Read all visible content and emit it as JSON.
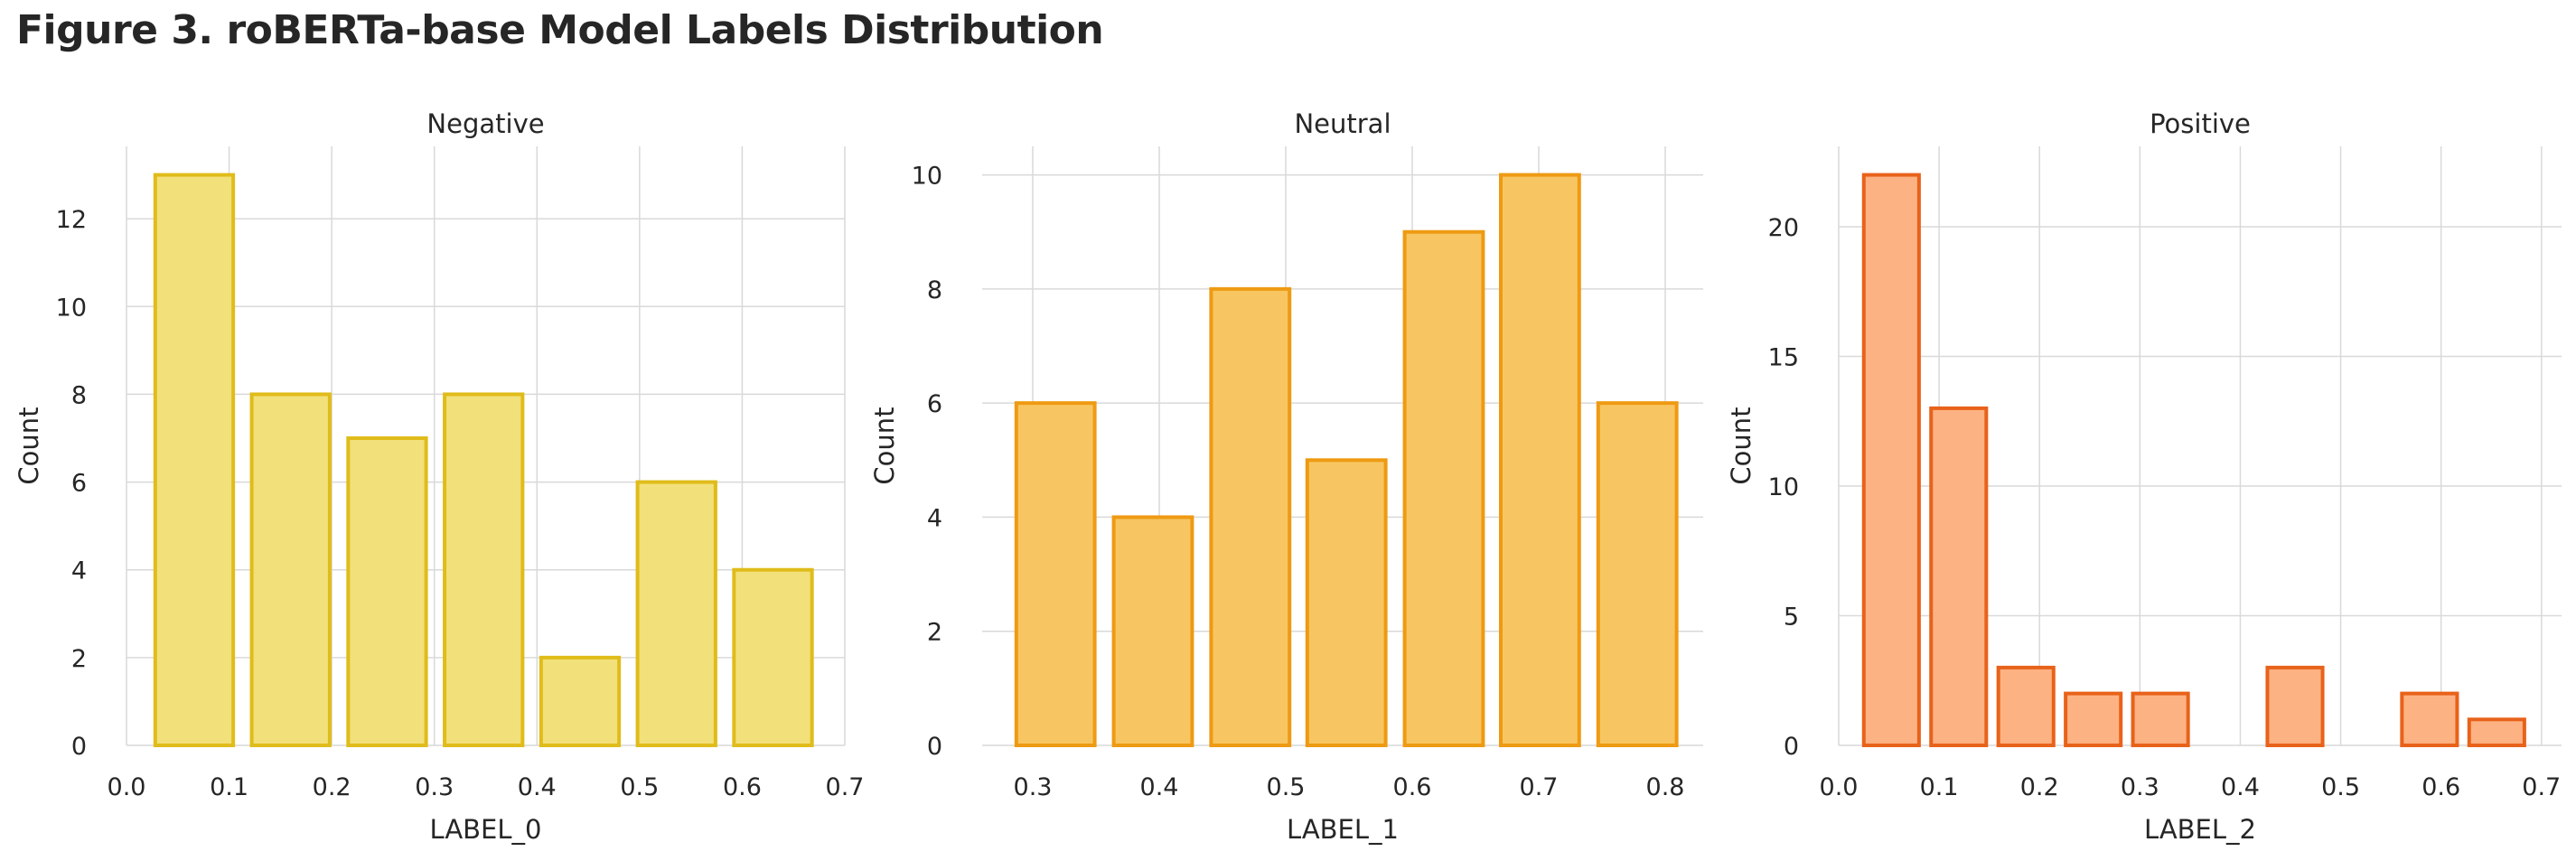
{
  "title": "Figure 3. roBERTa-base Model Labels Distribution",
  "chart_data": [
    {
      "type": "bar",
      "title": "Negative",
      "xlabel": "LABEL_0",
      "ylabel": "Count",
      "xlim": [
        0.0,
        0.7
      ],
      "ylim": [
        0,
        13.65
      ],
      "xticks": [
        "0.0",
        "0.1",
        "0.2",
        "0.3",
        "0.4",
        "0.5",
        "0.6",
        "0.7"
      ],
      "yticks": [
        "0",
        "2",
        "4",
        "6",
        "8",
        "10",
        "12"
      ],
      "bins": [
        [
          0.028,
          0.104
        ],
        [
          0.122,
          0.198
        ],
        [
          0.216,
          0.292
        ],
        [
          0.31,
          0.386
        ],
        [
          0.404,
          0.48
        ],
        [
          0.498,
          0.574
        ],
        [
          0.592,
          0.668
        ]
      ],
      "values": [
        13,
        8,
        7,
        8,
        2,
        6,
        4
      ],
      "fill": "#F2E07A",
      "edge": "#E0BC1A",
      "grid": true
    },
    {
      "type": "bar",
      "title": "Neutral",
      "xlabel": "LABEL_1",
      "ylabel": "Count",
      "xlim": [
        0.26,
        0.83
      ],
      "ylim": [
        0,
        10.5
      ],
      "xticks": [
        "0.3",
        "0.4",
        "0.5",
        "0.6",
        "0.7",
        "0.8"
      ],
      "yticks": [
        "0",
        "2",
        "4",
        "6",
        "8",
        "10"
      ],
      "bins": [
        [
          0.287,
          0.349
        ],
        [
          0.364,
          0.426
        ],
        [
          0.441,
          0.503
        ],
        [
          0.517,
          0.579
        ],
        [
          0.594,
          0.656
        ],
        [
          0.67,
          0.732
        ],
        [
          0.747,
          0.809
        ]
      ],
      "values": [
        6,
        4,
        8,
        5,
        9,
        10,
        6
      ],
      "fill": "#F7C662",
      "edge": "#EE9A12",
      "grid": true
    },
    {
      "type": "bar",
      "title": "Positive",
      "xlabel": "LABEL_2",
      "ylabel": "Count",
      "xlim": [
        0.0,
        0.72
      ],
      "ylim": [
        0,
        23.1
      ],
      "xticks": [
        "0.0",
        "0.1",
        "0.2",
        "0.3",
        "0.4",
        "0.5",
        "0.6",
        "0.7"
      ],
      "yticks": [
        "0",
        "5",
        "10",
        "15",
        "20"
      ],
      "bins": [
        [
          0.025,
          0.08
        ],
        [
          0.092,
          0.147
        ],
        [
          0.159,
          0.214
        ],
        [
          0.226,
          0.281
        ],
        [
          0.293,
          0.348
        ],
        [
          0.36,
          0.415
        ],
        [
          0.427,
          0.482
        ],
        [
          0.494,
          0.549
        ],
        [
          0.561,
          0.616
        ],
        [
          0.628,
          0.683
        ]
      ],
      "values": [
        22,
        13,
        3,
        2,
        2,
        0,
        3,
        0,
        2,
        1
      ],
      "fill": "#FDB283",
      "edge": "#E8621A",
      "grid": true
    }
  ]
}
